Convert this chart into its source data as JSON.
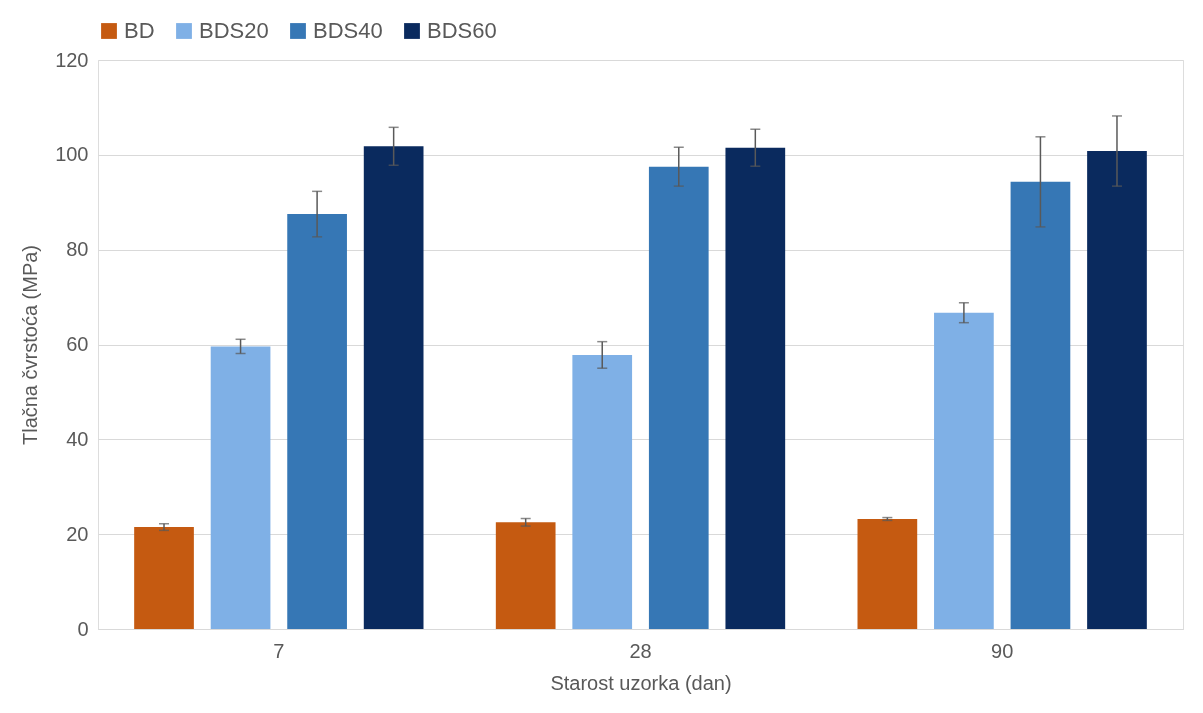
{
  "chart_data": {
    "type": "bar",
    "xlabel": "Starost uzorka (dan)",
    "ylabel": "Tlačna čvrstoća (MPa)",
    "categories": [
      "7",
      "28",
      "90"
    ],
    "series": [
      {
        "name": "BD",
        "color": "#c55a11",
        "values": [
          21.5,
          22.5,
          23.2
        ],
        "errors": [
          0.7,
          0.8,
          0.3
        ]
      },
      {
        "name": "BDS20",
        "color": "#7fb0e6",
        "values": [
          59.6,
          57.8,
          66.7
        ],
        "errors": [
          1.5,
          2.8,
          2.1
        ]
      },
      {
        "name": "BDS40",
        "color": "#3677b5",
        "values": [
          87.5,
          97.5,
          94.3
        ],
        "errors": [
          4.8,
          4.1,
          9.5
        ]
      },
      {
        "name": "BDS60",
        "color": "#0a2a5e",
        "values": [
          101.8,
          101.5,
          100.8
        ],
        "errors": [
          4.0,
          3.9,
          7.4
        ]
      }
    ],
    "ylim": [
      0,
      120
    ],
    "yticks": [
      0,
      20,
      40,
      60,
      80,
      100,
      120
    ],
    "grid": "y",
    "legend": "top"
  }
}
